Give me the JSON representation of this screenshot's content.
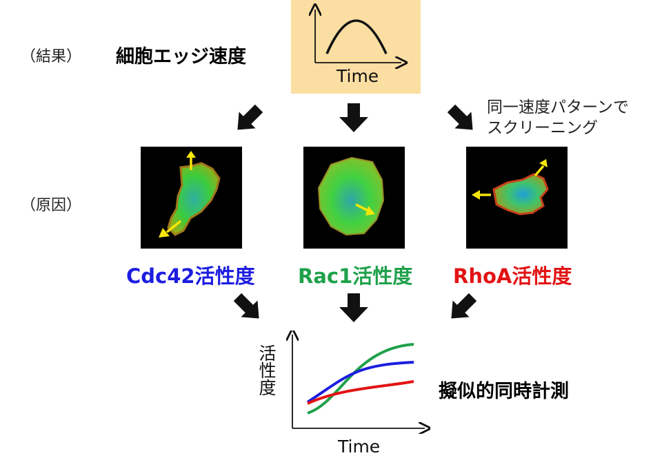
{
  "labels": {
    "result": "（結果）",
    "cause": "（原因）",
    "edge_speed": "細胞エッジ速度",
    "screening_line1": "同一速度パターンで",
    "screening_line2": "スクリーニング",
    "cdc42": "Cdc42活性度",
    "rac1": "Rac1活性度",
    "rhoa": "RhoA活性度",
    "simultaneous": "擬似的同時計測",
    "time_top": "Time",
    "time_bottom": "Time",
    "activity_axis": "活性度"
  },
  "colors": {
    "cdc42": "#1d1de0",
    "rac1": "#1fa14b",
    "rhoa": "#e21313",
    "time_box": "#fbdea2",
    "arrow": "#111111",
    "yellow_arrow": "#f5e60a"
  },
  "icons": {
    "arrow": "down-arrow-icon",
    "motion": "yellow-arrow-icon"
  }
}
